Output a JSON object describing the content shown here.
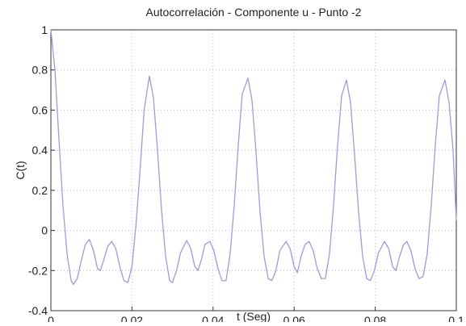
{
  "chart_data": {
    "type": "line",
    "title": "Autocorrelación - Componente u - Punto -2",
    "xlabel": "t (Seg)",
    "ylabel": "C(t)",
    "xlim": [
      0,
      0.1
    ],
    "xticks": [
      0,
      0.02,
      0.04,
      0.06,
      0.08,
      0.1
    ],
    "ylim": [
      -0.4,
      1
    ],
    "yticks": [
      -0.4,
      -0.2,
      0,
      0.2,
      0.4,
      0.6,
      0.8,
      1
    ],
    "grid": true,
    "series": [
      {
        "name": "C(t)",
        "color": "#9c9cd8",
        "x": [
          0,
          0.001,
          0.002,
          0.003,
          0.004,
          0.005,
          0.0055,
          0.0065,
          0.0075,
          0.0085,
          0.0095,
          0.0105,
          0.0115,
          0.0122,
          0.013,
          0.014,
          0.015,
          0.016,
          0.017,
          0.018,
          0.019,
          0.02,
          0.021,
          0.022,
          0.023,
          0.0243,
          0.0253,
          0.0263,
          0.0273,
          0.0283,
          0.0293,
          0.03,
          0.031,
          0.032,
          0.0335,
          0.0345,
          0.0355,
          0.0363,
          0.0372,
          0.038,
          0.0392,
          0.0402,
          0.0412,
          0.0422,
          0.0432,
          0.0442,
          0.0452,
          0.0462,
          0.0472,
          0.0486,
          0.0496,
          0.0506,
          0.0516,
          0.0526,
          0.0536,
          0.0545,
          0.0555,
          0.0565,
          0.058,
          0.059,
          0.06,
          0.0608,
          0.0617,
          0.0627,
          0.0637,
          0.0647,
          0.0657,
          0.0667,
          0.0677,
          0.0687,
          0.0697,
          0.0707,
          0.0717,
          0.0729,
          0.0739,
          0.0749,
          0.0759,
          0.0769,
          0.0779,
          0.0788,
          0.0798,
          0.0808,
          0.0823,
          0.0833,
          0.0843,
          0.0851,
          0.086,
          0.087,
          0.0878,
          0.0888,
          0.0898,
          0.0908,
          0.0918,
          0.0928,
          0.0938,
          0.0948,
          0.0958,
          0.0972,
          0.0982,
          0.0992,
          0.1
        ],
        "values": [
          1,
          0.8,
          0.45,
          0.12,
          -0.12,
          -0.25,
          -0.27,
          -0.24,
          -0.15,
          -0.07,
          -0.045,
          -0.1,
          -0.19,
          -0.2,
          -0.15,
          -0.08,
          -0.055,
          -0.09,
          -0.18,
          -0.25,
          -0.26,
          -0.18,
          0.03,
          0.3,
          0.6,
          0.77,
          0.66,
          0.4,
          0.1,
          -0.13,
          -0.25,
          -0.26,
          -0.2,
          -0.11,
          -0.05,
          -0.09,
          -0.18,
          -0.2,
          -0.14,
          -0.07,
          -0.055,
          -0.1,
          -0.19,
          -0.25,
          -0.25,
          -0.12,
          0.12,
          0.42,
          0.68,
          0.76,
          0.65,
          0.39,
          0.09,
          -0.13,
          -0.24,
          -0.25,
          -0.2,
          -0.1,
          -0.055,
          -0.09,
          -0.18,
          -0.21,
          -0.13,
          -0.07,
          -0.055,
          -0.1,
          -0.19,
          -0.24,
          -0.24,
          -0.12,
          0.12,
          0.42,
          0.67,
          0.75,
          0.64,
          0.38,
          0.09,
          -0.13,
          -0.24,
          -0.25,
          -0.2,
          -0.11,
          -0.055,
          -0.09,
          -0.18,
          -0.2,
          -0.13,
          -0.07,
          -0.055,
          -0.1,
          -0.19,
          -0.24,
          -0.23,
          -0.12,
          0.12,
          0.42,
          0.67,
          0.75,
          0.64,
          0.4,
          0.05
        ]
      }
    ]
  }
}
